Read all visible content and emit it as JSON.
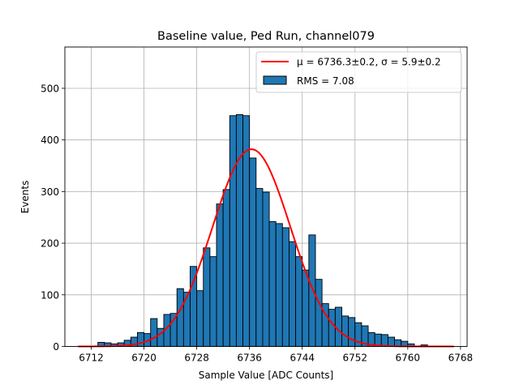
{
  "chart_data": {
    "type": "bar",
    "title": "Baseline value, Ped Run, channel079",
    "xlabel": "Sample Value [ADC Counts]",
    "ylabel": "Events",
    "xlim": [
      6708,
      6769
    ],
    "ylim": [
      0,
      580
    ],
    "xticks": [
      6712,
      6720,
      6728,
      6736,
      6744,
      6752,
      6760,
      6768
    ],
    "yticks": [
      0,
      100,
      200,
      300,
      400,
      500
    ],
    "grid": true,
    "legend_position": "top-right",
    "bar_color": "#1f77b4",
    "fit_color": "#ff0000",
    "bin_width": 1,
    "bin_edges_start": 6713,
    "values": [
      8,
      7,
      5,
      7,
      12,
      18,
      27,
      25,
      54,
      35,
      62,
      64,
      112,
      105,
      155,
      108,
      191,
      174,
      276,
      304,
      447,
      449,
      447,
      365,
      306,
      299,
      242,
      238,
      230,
      203,
      174,
      148,
      216,
      130,
      83,
      72,
      76,
      59,
      56,
      46,
      40,
      27,
      24,
      23,
      18,
      13,
      10,
      5,
      1,
      3
    ],
    "series": [
      {
        "name": "μ = 6736.3±0.2, σ = 5.9±0.2",
        "kind": "gaussian-fit",
        "mu": 6736.3,
        "sigma": 5.9,
        "amplitude": 382,
        "x_range": [
          6710,
          6767
        ]
      },
      {
        "name": "RMS = 7.08",
        "kind": "histogram"
      }
    ]
  }
}
